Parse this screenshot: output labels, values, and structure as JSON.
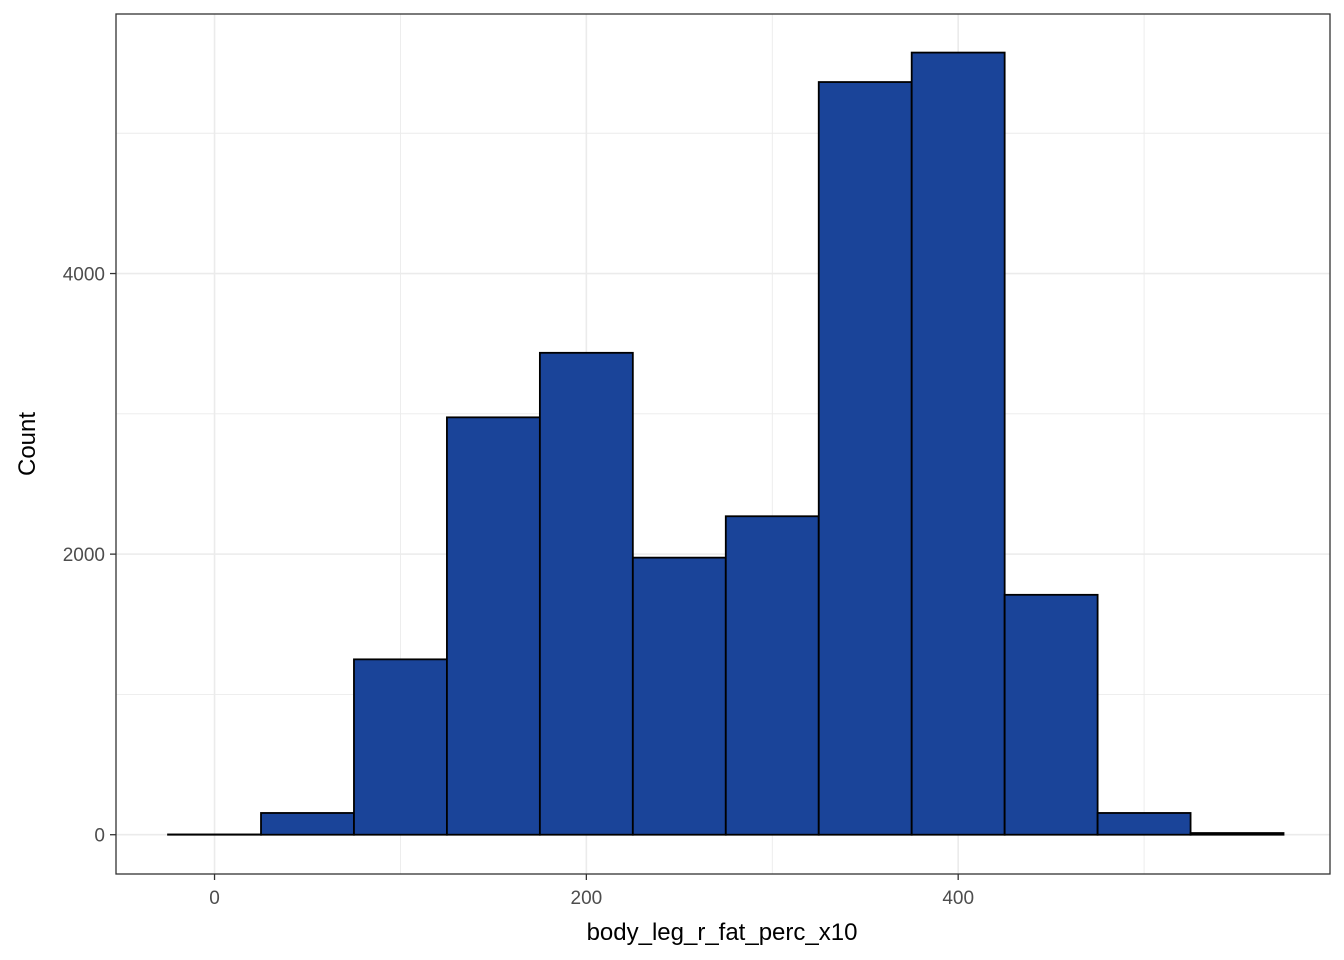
{
  "chart_data": {
    "type": "bar",
    "subtype": "histogram",
    "xlabel": "body_leg_r_fat_perc_x10",
    "ylabel": "Count",
    "bin_width": 50,
    "bins": [
      {
        "x_start": -25,
        "x_end": 25,
        "count": 2
      },
      {
        "x_start": 25,
        "x_end": 75,
        "count": 155
      },
      {
        "x_start": 75,
        "x_end": 125,
        "count": 1250
      },
      {
        "x_start": 125,
        "x_end": 175,
        "count": 2975
      },
      {
        "x_start": 175,
        "x_end": 225,
        "count": 3435
      },
      {
        "x_start": 225,
        "x_end": 275,
        "count": 1975
      },
      {
        "x_start": 275,
        "x_end": 325,
        "count": 2270
      },
      {
        "x_start": 325,
        "x_end": 375,
        "count": 5365
      },
      {
        "x_start": 375,
        "x_end": 425,
        "count": 5575
      },
      {
        "x_start": 425,
        "x_end": 475,
        "count": 1710
      },
      {
        "x_start": 475,
        "x_end": 525,
        "count": 155
      },
      {
        "x_start": 525,
        "x_end": 575,
        "count": 12
      }
    ],
    "x_ticks": [
      0,
      200,
      400
    ],
    "y_ticks": [
      0,
      2000,
      4000
    ],
    "x_minor_ticks": [
      100,
      300,
      500
    ],
    "y_minor_ticks": [
      1000,
      3000,
      5000
    ],
    "xlim": [
      -53,
      600
    ],
    "ylim": [
      -280,
      5850
    ],
    "grid": true,
    "legend": "none",
    "colors": {
      "bar_fill": "#1a4499",
      "bar_outline": "#000000",
      "grid": "#ebebeb",
      "panel_border": "#333333",
      "tick_label": "#4d4d4d"
    }
  }
}
